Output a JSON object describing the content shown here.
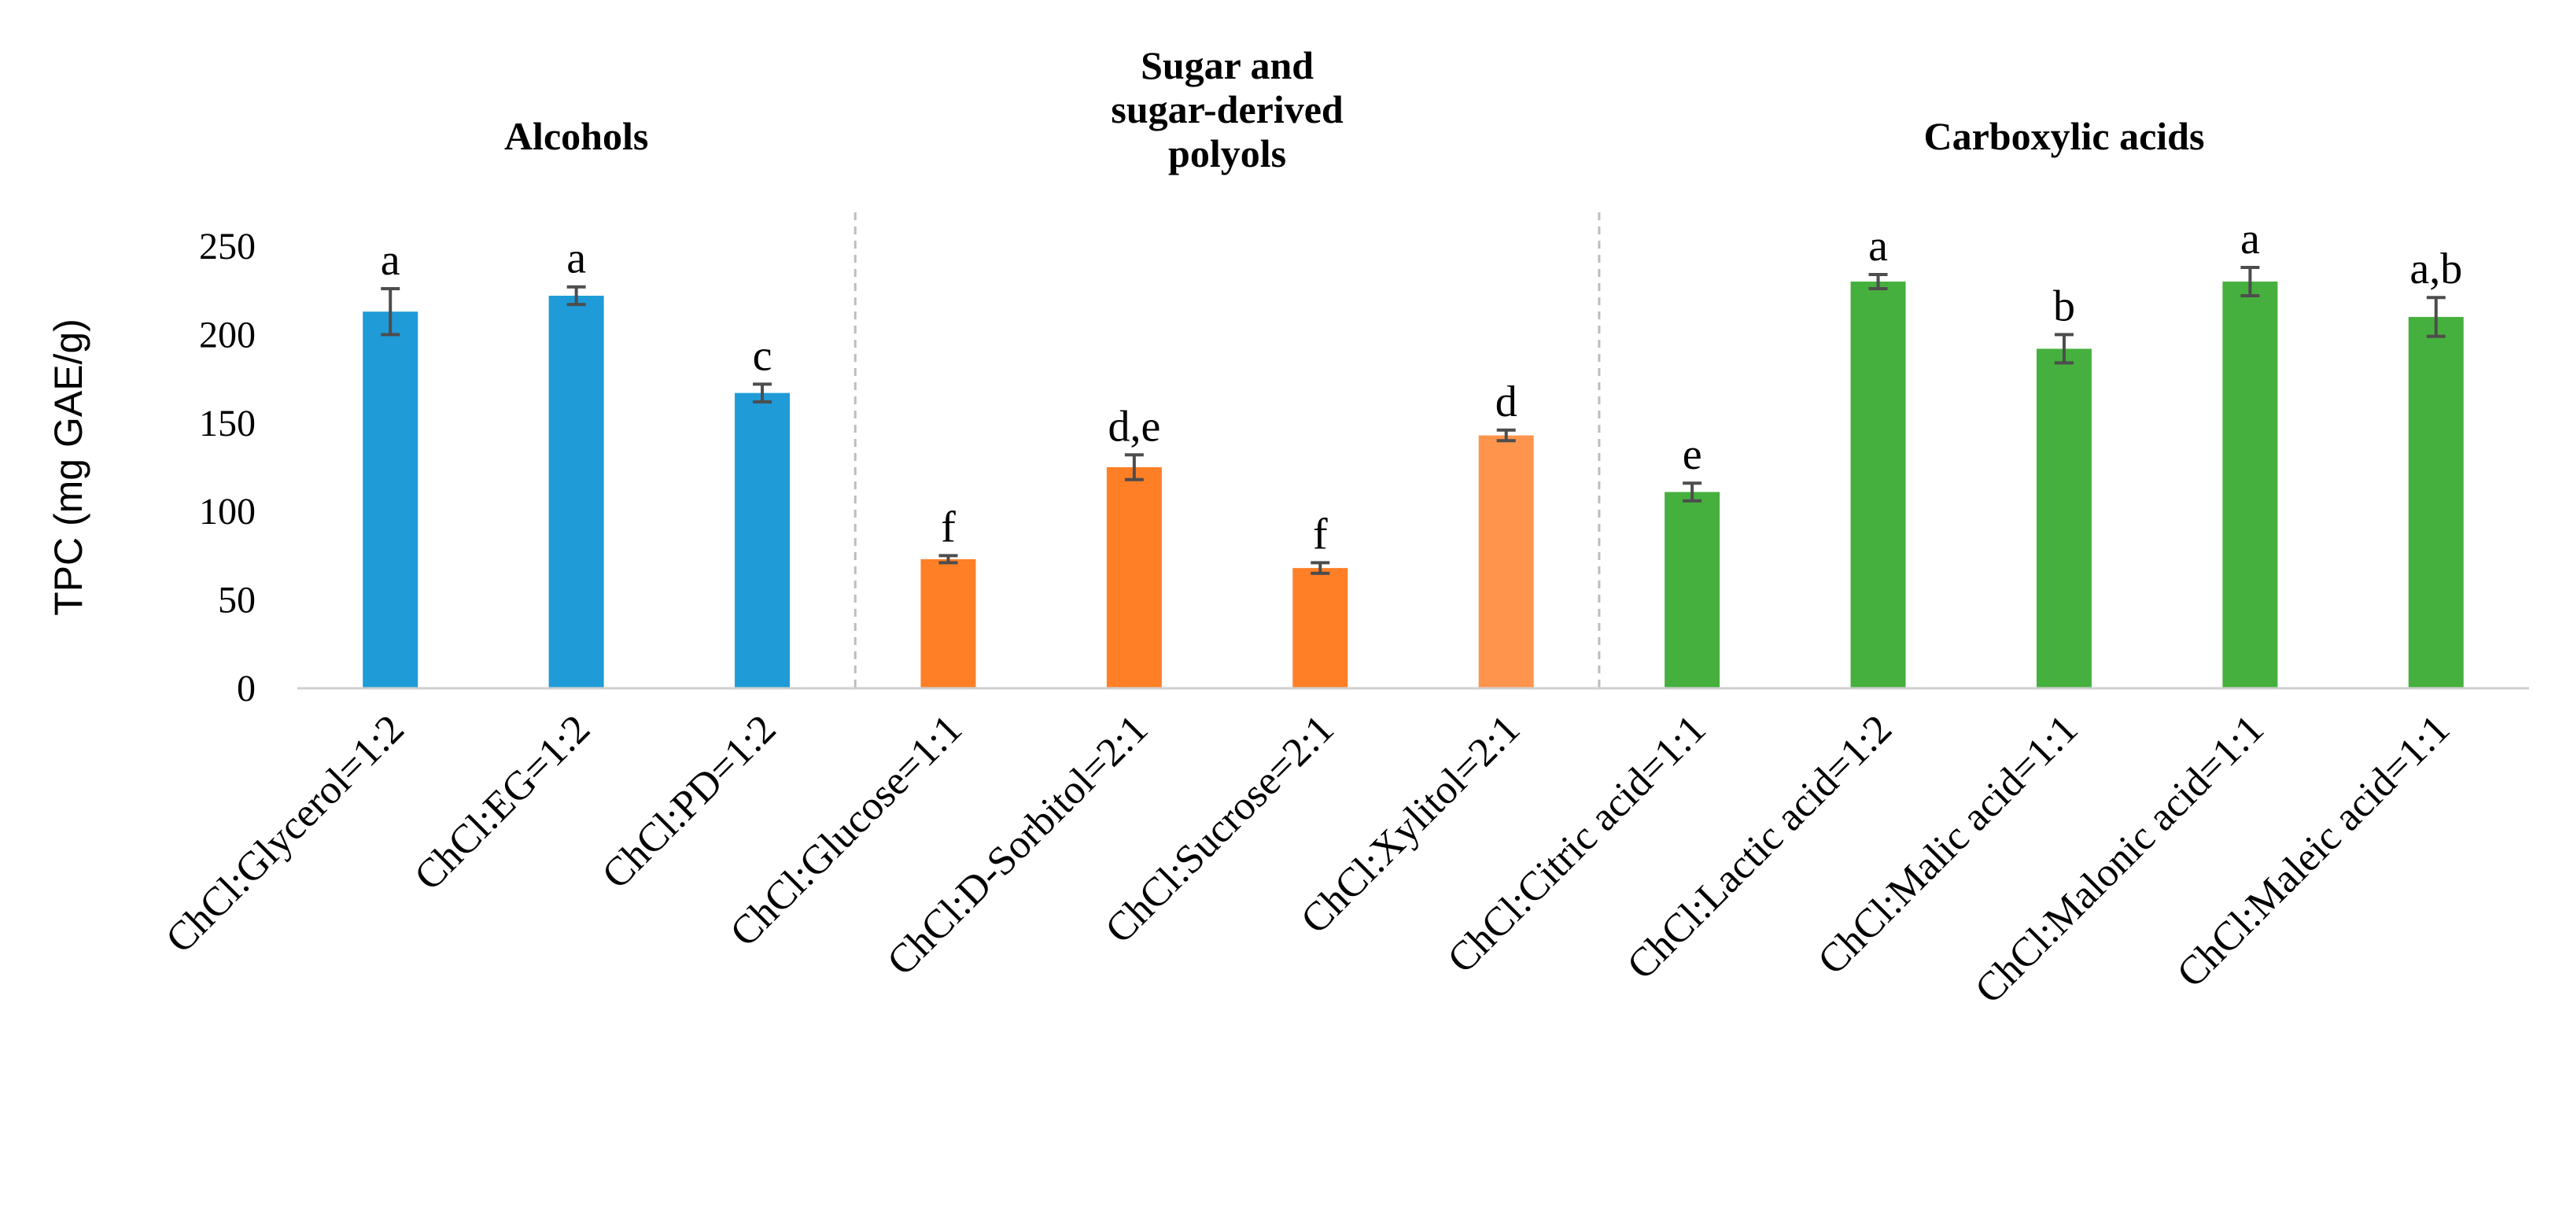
{
  "chart_data": {
    "type": "bar",
    "title": "",
    "xlabel": "",
    "ylabel": "TPC (mg GAE/g)",
    "ylim": [
      0,
      250
    ],
    "yticks": [
      0,
      50,
      100,
      150,
      200,
      250
    ],
    "grid": false,
    "groups": [
      {
        "name": "Alcohols",
        "color": "#1f9bd8",
        "items": [
          {
            "category": "ChCl:Glycerol=1:2",
            "value": 213,
            "error": 13,
            "label": "a"
          },
          {
            "category": "ChCl:EG=1:2",
            "value": 222,
            "error": 5,
            "label": "a"
          },
          {
            "category": "ChCl:PD=1:2",
            "value": 167,
            "error": 5,
            "label": "c"
          }
        ]
      },
      {
        "name": "Sugar and sugar-derived polyols",
        "name_lines": [
          "Sugar and",
          "sugar-derived",
          "polyols"
        ],
        "color": "#ff7f27",
        "items": [
          {
            "category": "ChCl:Glucose=1:1",
            "value": 73,
            "error": 2,
            "label": "f"
          },
          {
            "category": "ChCl:D-Sorbitol=2:1",
            "value": 125,
            "error": 7,
            "label": "d,e"
          },
          {
            "category": "ChCl:Sucrose=2:1",
            "value": 68,
            "error": 3,
            "label": "f"
          },
          {
            "category": "ChCl:Xylitol=2:1",
            "value": 143,
            "error": 3,
            "label": "d",
            "color": "#ff944d"
          }
        ]
      },
      {
        "name": "Carboxylic acids",
        "color": "#46b03e",
        "items": [
          {
            "category": "ChCl:Citric acid=1:1",
            "value": 111,
            "error": 5,
            "label": "e"
          },
          {
            "category": "ChCl:Lactic acid=1:2",
            "value": 230,
            "error": 4,
            "label": "a"
          },
          {
            "category": "ChCl:Malic acid=1:1",
            "value": 192,
            "error": 8,
            "label": "b"
          },
          {
            "category": "ChCl:Malonic acid=1:1",
            "value": 230,
            "error": 8,
            "label": "a"
          },
          {
            "category": "ChCl:Maleic acid=1:1",
            "value": 210,
            "error": 11,
            "label": "a,b"
          }
        ]
      }
    ]
  }
}
